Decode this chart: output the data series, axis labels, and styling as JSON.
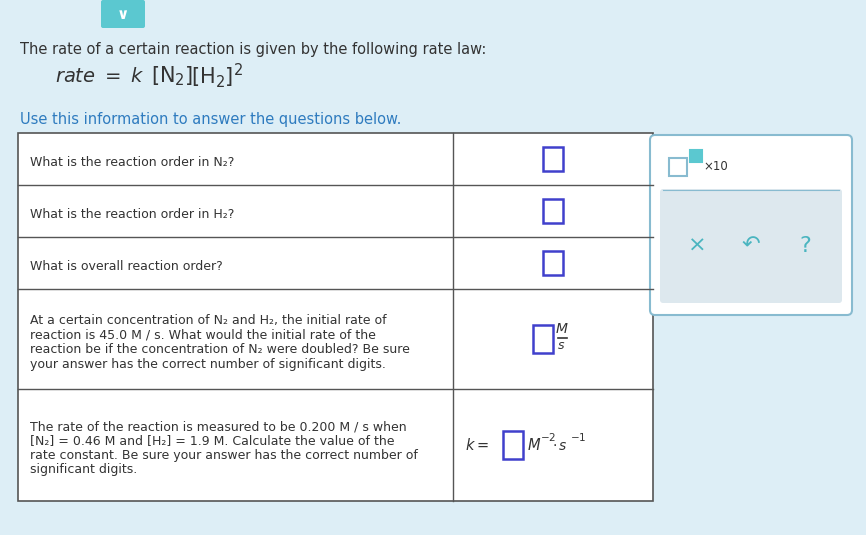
{
  "bg_color": "#ddeef6",
  "white": "#ffffff",
  "title_text": "The rate of a certain reaction is given by the following rate law:",
  "subtitle_text": "Use this information to answer the questions below.",
  "table_border": "#555555",
  "question_color": "#333333",
  "blue_text": "#2e7bbf",
  "input_box_color": "#4040cc",
  "teal_color": "#5bc8d0",
  "side_panel_color": "#ffffff",
  "side_panel_border": "#88bbd0",
  "button_area_bg": "#dde8ee",
  "button_color": "#4ab5c0",
  "rows": [
    {
      "question": "What is the reaction order in N₂?",
      "answer_type": "box_only",
      "q_lines": 1
    },
    {
      "question": "What is the reaction order in H₂?",
      "answer_type": "box_only",
      "q_lines": 1
    },
    {
      "question": "What is overall reaction order?",
      "answer_type": "box_only",
      "q_lines": 1
    },
    {
      "question": "At a certain concentration of N₂ and H₂, the initial rate of\nreaction is 45.0 Μ / s. What would the initial rate of the\nreaction be if the concentration of N₂ were doubled? Be sure\nyour answer has the correct number of significant digits.",
      "answer_type": "box_fraction",
      "q_lines": 4
    },
    {
      "question": "The rate of the reaction is measured to be 0.200 Μ / s when\n[N₂] = 0.46 Μ and [H₂] = 1.9 Μ. Calculate the value of the\nrate constant. Be sure your answer has the correct number of\nsignificant digits.",
      "answer_type": "k_eq",
      "q_lines": 4
    }
  ]
}
